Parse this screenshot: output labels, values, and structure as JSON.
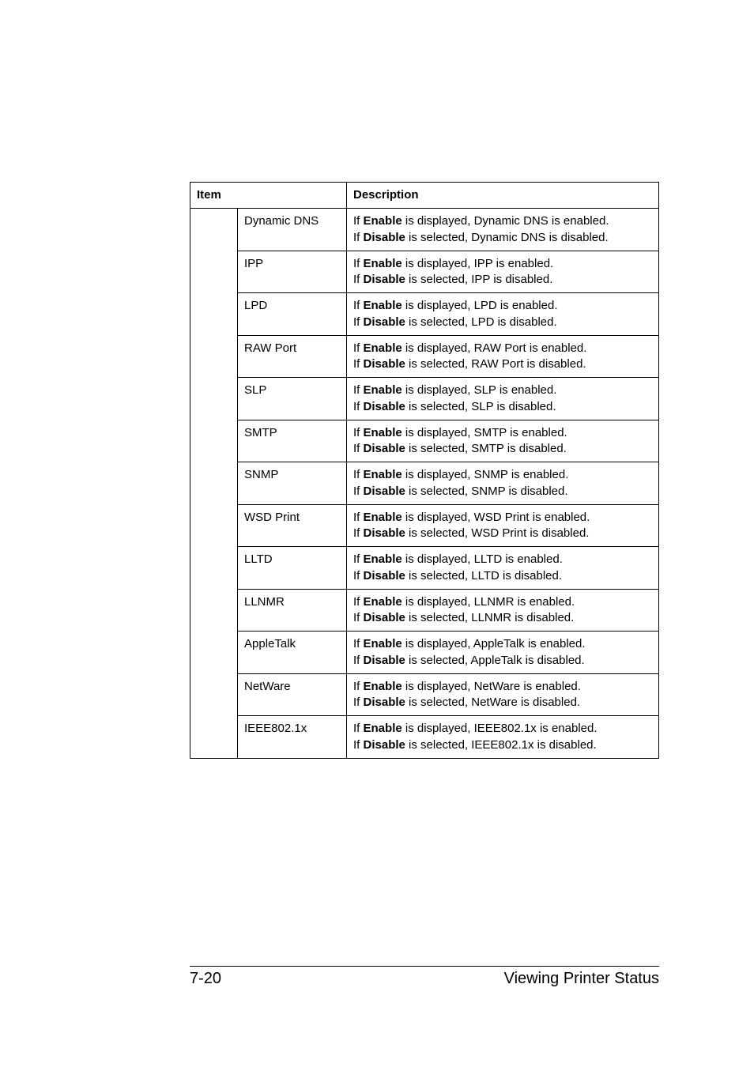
{
  "header": {
    "item": "Item",
    "description": "Description"
  },
  "rows": [
    {
      "sub": "Dynamic DNS",
      "desc": "If <b>Enable</b> is displayed, Dynamic DNS is enabled.<br>If <b>Disable</b> is selected, Dynamic DNS is disabled."
    },
    {
      "sub": "IPP",
      "desc": "If <b>Enable</b> is displayed, IPP is enabled.<br>If <b>Disable</b> is selected, IPP is disabled."
    },
    {
      "sub": "LPD",
      "desc": "If <b>Enable</b> is displayed, LPD is enabled.<br>If <b>Disable</b> is selected, LPD is disabled."
    },
    {
      "sub": "RAW Port",
      "desc": "If <b>Enable</b> is displayed, RAW Port is enabled.<br>If <b>Disable</b> is selected, RAW Port is disabled."
    },
    {
      "sub": "SLP",
      "desc": "If <b>Enable</b> is displayed, SLP is enabled.<br>If <b>Disable</b> is selected, SLP is disabled."
    },
    {
      "sub": "SMTP",
      "desc": "If <b>Enable</b> is displayed, SMTP is enabled.<br>If <b>Disable</b> is selected, SMTP is disabled."
    },
    {
      "sub": "SNMP",
      "desc": "If <b>Enable</b> is displayed, SNMP is enabled.<br>If <b>Disable</b> is selected, SNMP is disabled."
    },
    {
      "sub": "WSD Print",
      "desc": "If <b>Enable</b> is displayed, WSD Print is enabled.<br>If <b>Disable</b> is selected, WSD Print is disabled."
    },
    {
      "sub": "LLTD",
      "desc": "If <b>Enable</b> is displayed, LLTD is enabled.<br>If <b>Disable</b> is selected, LLTD is disabled."
    },
    {
      "sub": "LLNMR",
      "desc": "If <b>Enable</b> is displayed, LLNMR is enabled.<br>If <b>Disable</b> is selected, LLNMR is disabled."
    },
    {
      "sub": "AppleTalk",
      "desc": "If <b>Enable</b> is displayed, AppleTalk is enabled.<br>If <b>Disable</b> is selected, AppleTalk is disabled."
    },
    {
      "sub": "NetWare",
      "desc": "If <b>Enable</b> is displayed, NetWare is enabled.<br>If <b>Disable</b> is selected, NetWare is disabled."
    },
    {
      "sub": "IEEE802.1x",
      "desc": "If <b>Enable</b> is displayed, IEEE802.1x is enabled.<br>If <b>Disable</b> is selected, IEEE802.1x is disabled."
    }
  ],
  "footer": {
    "page": "7-20",
    "title": "Viewing Printer Status"
  }
}
